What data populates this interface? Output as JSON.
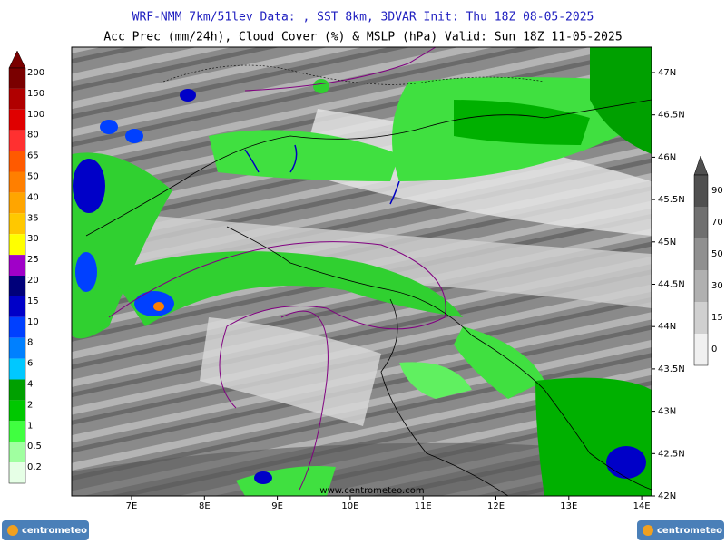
{
  "header": {
    "line1": "WRF-NMM 7km/51lev  Data: , SST 8km, 3DVAR  Init: Thu 18Z 08-05-2025",
    "line2": "Acc Prec (mm/24h), Cloud Cover (%) & MSLP (hPa)  Valid: Sun 18Z 11-05-2025"
  },
  "precip_legend": {
    "labels": [
      "200",
      "150",
      "100",
      "80",
      "65",
      "50",
      "40",
      "35",
      "30",
      "25",
      "20",
      "15",
      "10",
      "8",
      "6",
      "4",
      "2",
      "1",
      "0.5",
      "0.2"
    ],
    "colors": [
      "#7a0000",
      "#b00000",
      "#e00000",
      "#ff3030",
      "#ff5a00",
      "#ff7f00",
      "#ffa500",
      "#ffc800",
      "#ffff00",
      "#a000c8",
      "#00007a",
      "#0000c8",
      "#0040ff",
      "#0080ff",
      "#00c8ff",
      "#00a000",
      "#00c800",
      "#40ff40",
      "#a0ffa0",
      "#e6ffe6"
    ]
  },
  "cloud_legend": {
    "labels": [
      "90",
      "70",
      "50",
      "30",
      "15",
      "0"
    ],
    "colors": [
      "#505050",
      "#707070",
      "#909090",
      "#b0b0b0",
      "#d0d0d0",
      "#f0f0f0"
    ]
  },
  "map": {
    "lon_labels": [
      "7E",
      "8E",
      "9E",
      "10E",
      "11E",
      "12E",
      "13E",
      "14E"
    ],
    "lat_labels": [
      "47N",
      "46.5N",
      "46N",
      "45.5N",
      "45N",
      "44.5N",
      "44N",
      "43.5N",
      "43N",
      "42.5N",
      "42N"
    ],
    "watermark": "www.centrometeo.com"
  },
  "logos": [
    "centrometeo",
    "centrometeo"
  ]
}
